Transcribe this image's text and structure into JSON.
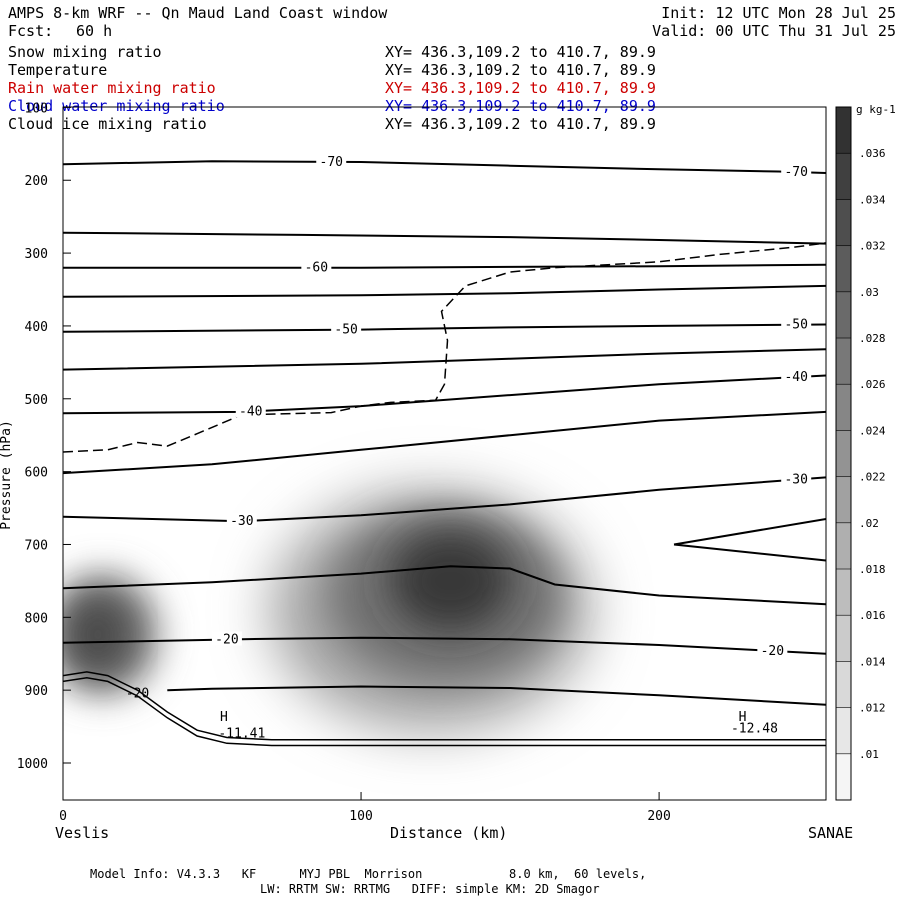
{
  "header": {
    "title": "AMPS 8-km WRF -- Qn Maud Land Coast window",
    "forecast_label": "Fcst:",
    "forecast_value": "60 h",
    "init": "Init: 12 UTC Mon 28 Jul 25",
    "valid": "Valid: 00 UTC Thu 31 Jul 25"
  },
  "legend": [
    {
      "label": "Snow mixing ratio",
      "xy": "XY= 436.3,109.2 to 410.7, 89.9",
      "color": "#000000"
    },
    {
      "label": "Temperature",
      "xy": "XY= 436.3,109.2 to 410.7, 89.9",
      "color": "#000000"
    },
    {
      "label": "Rain water mixing ratio",
      "xy": "XY= 436.3,109.2 to 410.7, 89.9",
      "color": "#cc0000"
    },
    {
      "label": "Cloud water mixing ratio",
      "xy": "XY= 436.3,109.2 to 410.7, 89.9",
      "color": "#0000cc"
    },
    {
      "label": "Cloud ice mixing ratio",
      "xy": "XY= 436.3,109.2 to 410.7, 89.9",
      "color": "#000000"
    }
  ],
  "footer": {
    "line1": "Model Info: V4.3.3   KF      MYJ PBL  Morrison            8.0 km,  60 levels,",
    "line2": "LW: RRTM SW: RRTMG   DIFF: simple KM: 2D Smagor"
  },
  "chart_data": {
    "type": "cross-section contour",
    "xlabel": "Distance (km)",
    "ylabel": "Pressure (hPa)",
    "xlim": [
      0,
      256
    ],
    "ylim": [
      1050,
      100
    ],
    "x_ticks": [
      0,
      100,
      200
    ],
    "y_ticks": [
      100,
      200,
      300,
      400,
      500,
      600,
      700,
      800,
      900,
      1000
    ],
    "x_endpoint_labels": {
      "left": "Veslis",
      "right": "SANAE"
    },
    "colorbar": {
      "unit": "g kg-1",
      "ticks": [
        ".01",
        ".012",
        ".014",
        ".016",
        ".018",
        ".02",
        ".022",
        ".024",
        ".026",
        ".028",
        ".03",
        ".032",
        ".034",
        ".036"
      ],
      "min": 0.009,
      "max": 0.037
    },
    "temperature_contours": [
      {
        "label": "-70",
        "points": [
          [
            0,
            178
          ],
          [
            50,
            174
          ],
          [
            100,
            175
          ],
          [
            150,
            180
          ],
          [
            200,
            185
          ],
          [
            240,
            188
          ],
          [
            256,
            190
          ]
        ]
      },
      {
        "label": "",
        "points": [
          [
            0,
            272
          ],
          [
            80,
            275
          ],
          [
            150,
            278
          ],
          [
            200,
            282
          ],
          [
            256,
            287
          ]
        ]
      },
      {
        "label": "-60",
        "points": [
          [
            0,
            320
          ],
          [
            100,
            320
          ],
          [
            150,
            319
          ],
          [
            200,
            318
          ],
          [
            256,
            316
          ]
        ]
      },
      {
        "label": "",
        "points": [
          [
            0,
            360
          ],
          [
            100,
            358
          ],
          [
            150,
            355
          ],
          [
            200,
            350
          ],
          [
            256,
            345
          ]
        ]
      },
      {
        "label": "-50",
        "points": [
          [
            0,
            408
          ],
          [
            100,
            405
          ],
          [
            150,
            402
          ],
          [
            200,
            400
          ],
          [
            256,
            398
          ]
        ]
      },
      {
        "label": "",
        "points": [
          [
            0,
            460
          ],
          [
            100,
            452
          ],
          [
            150,
            445
          ],
          [
            200,
            438
          ],
          [
            256,
            432
          ]
        ]
      },
      {
        "label": "-40",
        "points": [
          [
            0,
            520
          ],
          [
            60,
            518
          ],
          [
            100,
            510
          ],
          [
            150,
            495
          ],
          [
            200,
            480
          ],
          [
            256,
            468
          ]
        ]
      },
      {
        "label": "",
        "points": [
          [
            0,
            602
          ],
          [
            50,
            590
          ],
          [
            100,
            570
          ],
          [
            150,
            550
          ],
          [
            200,
            530
          ],
          [
            256,
            518
          ]
        ]
      },
      {
        "label": "-30",
        "points": [
          [
            0,
            662
          ],
          [
            30,
            665
          ],
          [
            60,
            668
          ],
          [
            100,
            660
          ],
          [
            150,
            645
          ],
          [
            200,
            625
          ],
          [
            256,
            608
          ]
        ]
      },
      {
        "label": "",
        "points": [
          [
            0,
            760
          ],
          [
            50,
            752
          ],
          [
            100,
            740
          ],
          [
            130,
            730
          ],
          [
            150,
            733
          ],
          [
            165,
            755
          ],
          [
            200,
            770
          ],
          [
            256,
            782
          ]
        ]
      },
      {
        "label": "-20",
        "points": [
          [
            0,
            835
          ],
          [
            60,
            830
          ],
          [
            100,
            828
          ],
          [
            150,
            830
          ],
          [
            200,
            838
          ],
          [
            256,
            850
          ]
        ]
      },
      {
        "label": "",
        "points": [
          [
            35,
            900
          ],
          [
            50,
            898
          ],
          [
            100,
            895
          ],
          [
            150,
            897
          ],
          [
            200,
            907
          ],
          [
            256,
            920
          ]
        ]
      },
      {
        "label": "",
        "points": [
          [
            205,
            700
          ],
          [
            256,
            665
          ]
        ]
      },
      {
        "label": "",
        "points": [
          [
            205,
            700
          ],
          [
            256,
            722
          ]
        ]
      }
    ],
    "cloud_ice_contour_dashed": {
      "points": [
        [
          0,
          573
        ],
        [
          15,
          570
        ],
        [
          25,
          560
        ],
        [
          35,
          565
        ],
        [
          45,
          548
        ],
        [
          60,
          522
        ],
        [
          90,
          519
        ],
        [
          100,
          510
        ],
        [
          110,
          505
        ],
        [
          125,
          502
        ],
        [
          128,
          480
        ],
        [
          129,
          420
        ],
        [
          127,
          380
        ],
        [
          135,
          345
        ],
        [
          150,
          326
        ],
        [
          165,
          320
        ],
        [
          200,
          312
        ],
        [
          220,
          302
        ],
        [
          245,
          292
        ],
        [
          256,
          286
        ]
      ]
    },
    "terrain": {
      "points": [
        [
          0,
          880
        ],
        [
          8,
          875
        ],
        [
          15,
          880
        ],
        [
          25,
          900
        ],
        [
          35,
          930
        ],
        [
          45,
          955
        ],
        [
          55,
          965
        ],
        [
          70,
          968
        ],
        [
          100,
          968
        ],
        [
          150,
          968
        ],
        [
          200,
          968
        ],
        [
          256,
          968
        ]
      ]
    },
    "annotations": [
      {
        "text": "-20",
        "x": 25,
        "p": 910
      },
      {
        "text": "H",
        "x": 54,
        "p": 942
      },
      {
        "text": "-11.41",
        "x": 60,
        "p": 965
      },
      {
        "text": "H",
        "x": 228,
        "p": 942
      },
      {
        "text": "-12.48",
        "x": 232,
        "p": 958
      }
    ],
    "snow_maxima": [
      {
        "x": 10,
        "p": 810,
        "value": 0.034
      },
      {
        "x": 130,
        "p": 750,
        "value": 0.036
      }
    ]
  }
}
